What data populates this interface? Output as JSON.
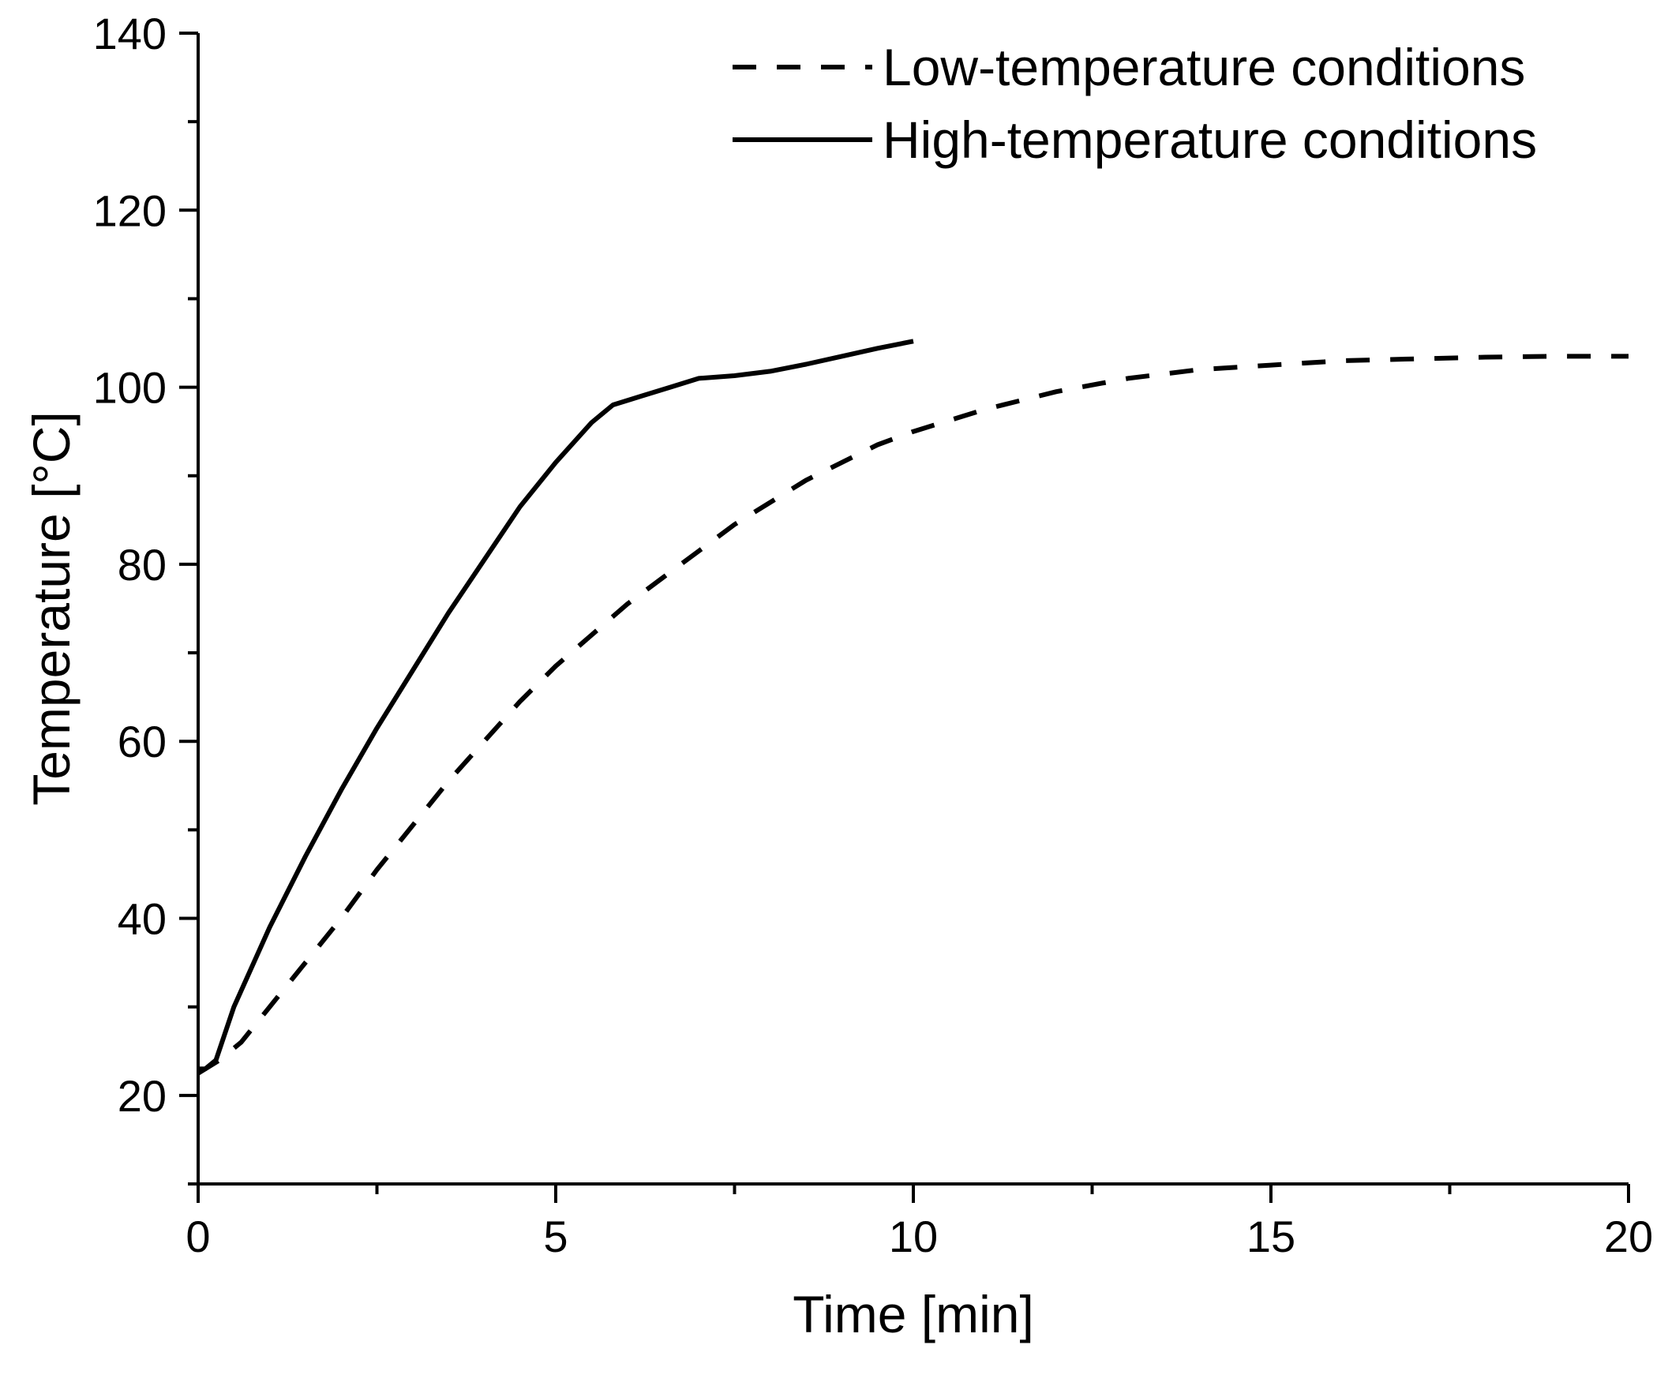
{
  "chart_data": {
    "type": "line",
    "title": "",
    "xlabel": "Time [min]",
    "ylabel": "Temperature [°C]",
    "xlim": [
      0,
      20
    ],
    "ylim": [
      10,
      140
    ],
    "xticks": [
      0,
      5,
      10,
      15,
      20
    ],
    "yticks": [
      20,
      40,
      60,
      80,
      100,
      120,
      140
    ],
    "x_minor_step": 2.5,
    "y_minor_step": 10,
    "grid": false,
    "legend_position": "top-right",
    "colors": {
      "axis": "#000000",
      "series": "#000000"
    },
    "series": [
      {
        "name": "Low-temperature conditions",
        "style": "dashed",
        "x": [
          0,
          0.3,
          0.6,
          1,
          1.5,
          2,
          2.5,
          3,
          3.5,
          4,
          4.5,
          5,
          5.5,
          6,
          6.5,
          7,
          7.5,
          8,
          8.5,
          9,
          9.5,
          10,
          11,
          12,
          13,
          14,
          15,
          16,
          17,
          18,
          19,
          20
        ],
        "y": [
          22.5,
          24,
          26,
          30,
          35,
          40,
          45.5,
          50.5,
          55.5,
          60,
          64.5,
          68.5,
          72,
          75.5,
          78.5,
          81.5,
          84.5,
          87,
          89.5,
          91.5,
          93.5,
          95,
          97.5,
          99.5,
          101,
          102,
          102.5,
          103,
          103.2,
          103.4,
          103.5,
          103.5
        ]
      },
      {
        "name": "High-temperature conditions",
        "style": "solid",
        "x": [
          0,
          0.1,
          0.25,
          0.5,
          1,
          1.5,
          2,
          2.5,
          3,
          3.5,
          4,
          4.5,
          5,
          5.5,
          5.8,
          6.2,
          6.6,
          7,
          7.5,
          8,
          8.5,
          9,
          9.5,
          10
        ],
        "y": [
          23,
          23,
          24,
          30,
          39,
          47,
          54.5,
          61.5,
          68,
          74.5,
          80.5,
          86.5,
          91.5,
          96,
          98,
          99,
          100,
          101,
          101.3,
          101.8,
          102.6,
          103.5,
          104.4,
          105.2
        ]
      }
    ]
  }
}
